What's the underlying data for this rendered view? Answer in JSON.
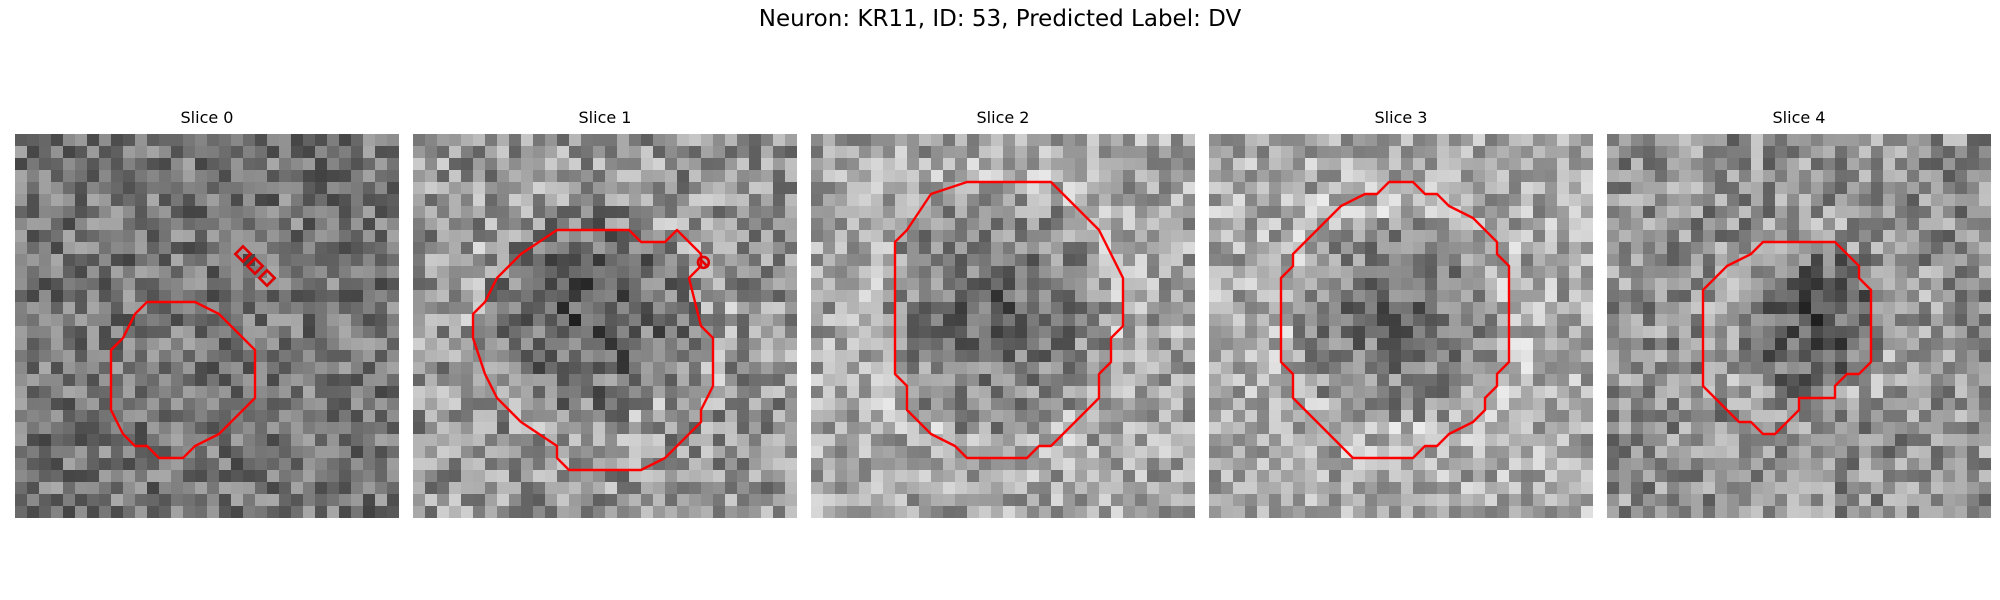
{
  "figure": {
    "title": "Neuron: KR11, ID: 53, Predicted Label: DV"
  },
  "colors": {
    "contour": "#ff0000",
    "background": "#ffffff"
  },
  "panels": [
    {
      "title": "Slice 0"
    },
    {
      "title": "Slice 1"
    },
    {
      "title": "Slice 2"
    },
    {
      "title": "Slice 3"
    },
    {
      "title": "Slice 4"
    }
  ]
}
